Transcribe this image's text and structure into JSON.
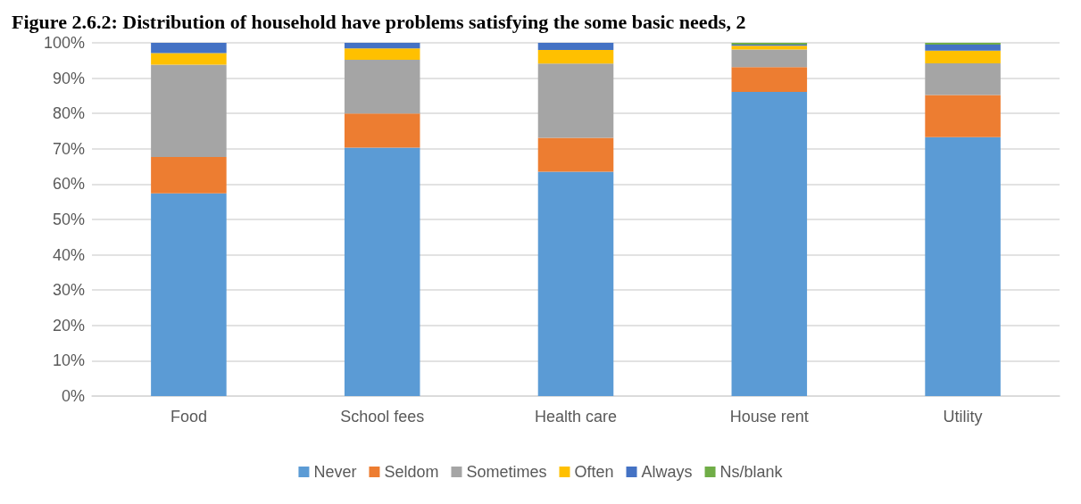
{
  "chart_data": {
    "type": "bar",
    "title": "Figure 2.6.2: Distribution of household have problems satisfying the some basic needs, 2",
    "categories": [
      "Food",
      "School fees",
      "Health care",
      "House rent",
      "Utility"
    ],
    "stacked": true,
    "grid": "y",
    "legend": "bottom",
    "ylim": [
      0,
      100
    ],
    "yticks": [
      {
        "value": 0,
        "label": "0%"
      },
      {
        "value": 10,
        "label": "10%"
      },
      {
        "value": 20,
        "label": "20%"
      },
      {
        "value": 30,
        "label": "30%"
      },
      {
        "value": 40,
        "label": "40%"
      },
      {
        "value": 50,
        "label": "50%"
      },
      {
        "value": 60,
        "label": "60%"
      },
      {
        "value": 70,
        "label": "70%"
      },
      {
        "value": 80,
        "label": "80%"
      },
      {
        "value": 90,
        "label": "90%"
      },
      {
        "value": 100,
        "label": "100%"
      }
    ],
    "series": [
      {
        "name": "Never",
        "color": "#5b9bd5",
        "values": [
          57.4,
          70.3,
          63.5,
          86.1,
          73.3
        ]
      },
      {
        "name": "Seldom",
        "color": "#ed7d31",
        "values": [
          10.3,
          9.7,
          9.6,
          7.0,
          11.9
        ]
      },
      {
        "name": "Sometimes",
        "color": "#a5a5a5",
        "values": [
          26.1,
          15.2,
          21.0,
          5.0,
          9.0
        ]
      },
      {
        "name": "Often",
        "color": "#ffc000",
        "values": [
          3.3,
          3.2,
          3.9,
          1.1,
          3.6
        ]
      },
      {
        "name": "Always",
        "color": "#4472c4",
        "values": [
          2.9,
          1.6,
          2.0,
          0.3,
          1.7
        ]
      },
      {
        "name": "Ns/blank",
        "color": "#70ad47",
        "values": [
          0,
          0,
          0,
          0.5,
          0.5
        ]
      }
    ]
  }
}
